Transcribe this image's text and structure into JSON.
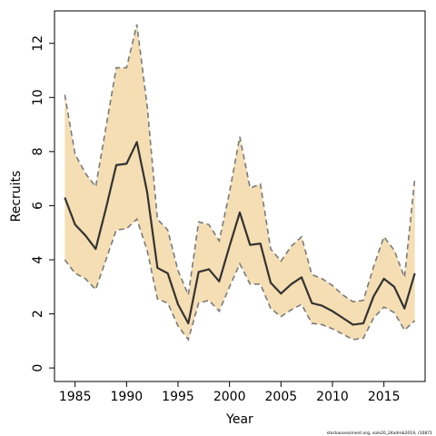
{
  "chart_data": {
    "type": "line",
    "title": "",
    "xlabel": "Year",
    "ylabel": "Recruits",
    "xlim": [
      1983,
      2019
    ],
    "ylim": [
      -0.5,
      13.2
    ],
    "x_ticks": [
      1985,
      1990,
      1995,
      2000,
      2005,
      2010,
      2015
    ],
    "y_ticks": [
      0,
      2,
      4,
      6,
      8,
      10,
      12
    ],
    "x": [
      1984,
      1985,
      1986,
      1987,
      1988,
      1989,
      1990,
      1991,
      1992,
      1993,
      1994,
      1995,
      1996,
      1997,
      1998,
      1999,
      2000,
      2001,
      2002,
      2003,
      2004,
      2005,
      2006,
      2007,
      2008,
      2009,
      2010,
      2011,
      2012,
      2013,
      2014,
      2015,
      2016,
      2017,
      2018
    ],
    "series": [
      {
        "role": "estimate",
        "values": [
          6.3,
          5.3,
          4.9,
          4.4,
          5.9,
          7.5,
          7.55,
          8.35,
          6.5,
          3.7,
          3.5,
          2.35,
          1.65,
          3.55,
          3.65,
          3.2,
          4.5,
          5.75,
          4.55,
          4.6,
          3.15,
          2.75,
          3.1,
          3.35,
          2.4,
          2.3,
          2.1,
          1.85,
          1.6,
          1.65,
          2.65,
          3.3,
          3.0,
          2.2,
          3.5
        ]
      },
      {
        "role": "upper",
        "values": [
          10.1,
          7.9,
          7.2,
          6.7,
          8.9,
          11.1,
          11.1,
          12.7,
          9.7,
          5.5,
          5.1,
          3.6,
          2.7,
          5.4,
          5.3,
          4.7,
          6.5,
          8.55,
          6.65,
          6.8,
          4.4,
          3.95,
          4.5,
          4.85,
          3.45,
          3.3,
          3.05,
          2.7,
          2.45,
          2.5,
          3.75,
          4.85,
          4.35,
          3.35,
          7.0
        ]
      },
      {
        "role": "lower",
        "values": [
          4.0,
          3.5,
          3.3,
          2.9,
          4.0,
          5.1,
          5.15,
          5.5,
          4.35,
          2.55,
          2.4,
          1.55,
          1.05,
          2.4,
          2.5,
          2.1,
          3.0,
          3.85,
          3.1,
          3.1,
          2.2,
          1.9,
          2.15,
          2.35,
          1.65,
          1.6,
          1.45,
          1.25,
          1.05,
          1.1,
          1.85,
          2.25,
          2.05,
          1.4,
          1.75
        ]
      }
    ],
    "colors": {
      "band_fill": "#f5deb3",
      "bound_line": "#7a7a7a",
      "estimate_line": "#333333",
      "axis": "#000000"
    },
    "footnote": "stockassessment.org,  sole20_24admb2019,  r10871"
  }
}
